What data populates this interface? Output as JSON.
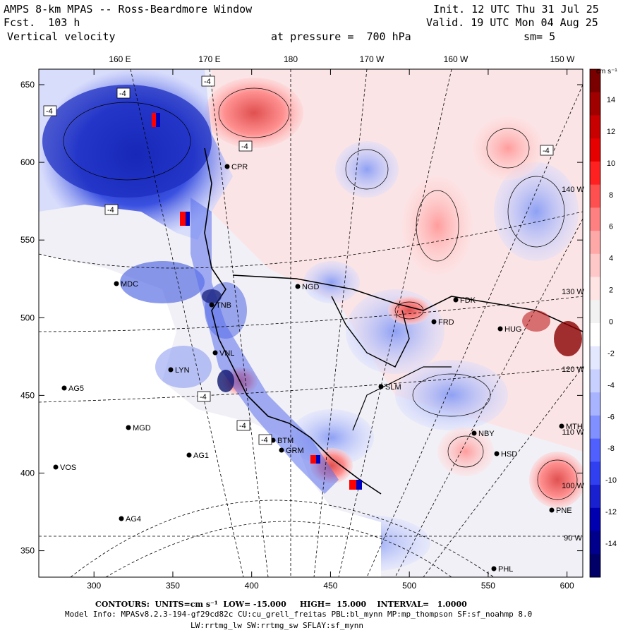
{
  "header": {
    "title": "AMPS 8-km MPAS -- Ross-Beardmore Window",
    "fcst_label": "Fcst.",
    "fcst_value": "103 h",
    "field": "Vertical velocity",
    "init": "Init. 12 UTC Thu 31 Jul 25",
    "valid": "Valid. 19 UTC Mon 04 Aug 25",
    "pressure_label": "at pressure =",
    "pressure_value": "700 hPa",
    "smooth": "sm= 5"
  },
  "axes": {
    "x_ticks": [
      "300",
      "350",
      "400",
      "450",
      "500",
      "550",
      "600"
    ],
    "y_ticks": [
      "650",
      "600",
      "550",
      "500",
      "450",
      "400",
      "350"
    ],
    "lon_labels": [
      "160 E",
      "170 E",
      "180",
      "170 W",
      "160 W",
      "150 W"
    ],
    "lat_right_labels": [
      "140 W",
      "130 W",
      "120 W",
      "110 W",
      "100 W",
      "90 W"
    ]
  },
  "colorbar": {
    "unit": "cm s⁻¹",
    "labels": [
      "14",
      "12",
      "10",
      "8",
      "6",
      "4",
      "2",
      "0",
      "-2",
      "-4",
      "-6",
      "-8",
      "-10",
      "-12",
      "-14"
    ],
    "colors": [
      "#7a0000",
      "#a00000",
      "#c80000",
      "#e60000",
      "#ff2020",
      "#ff5050",
      "#ff8080",
      "#ffa8a8",
      "#ffc8c8",
      "#ffe4e4",
      "#f2f2f2",
      "#ffffff",
      "#e4e8ff",
      "#c8d0ff",
      "#a8b4ff",
      "#8090ff",
      "#5060ff",
      "#3040f0",
      "#1820d0",
      "#0000b0",
      "#00008c",
      "#000068"
    ]
  },
  "stations": [
    "CPR",
    "MDC",
    "NGD",
    "FDK",
    "FRD",
    "TNB",
    "VNL",
    "LYN",
    "AG5",
    "MGD",
    "VOS",
    "AG1",
    "AG4",
    "SLM",
    "NBY",
    "BTM",
    "GRM",
    "HSD",
    "PNE",
    "PHL",
    "MTH",
    "HUG"
  ],
  "contour_labels": [
    "-4",
    "-4",
    "-4",
    "-4",
    "-4",
    "-4",
    "-4",
    "-4",
    "-4"
  ],
  "footer": {
    "contours": "CONTOURS:  UNITS=cm s⁻¹  LOW= -15.000     HIGH=  15.000    INTERVAL=   1.0000",
    "model_info": "Model Info: MPASv8.2.3-194-gf29cd82c CU:cu_grell_freitas PBL:bl_mynn MP:mp_thompson SF:sf_noahmp 8.0",
    "model_info2": "LW:rrtmg_lw SW:rrtmg_sw SFLAY:sf_mynn"
  }
}
